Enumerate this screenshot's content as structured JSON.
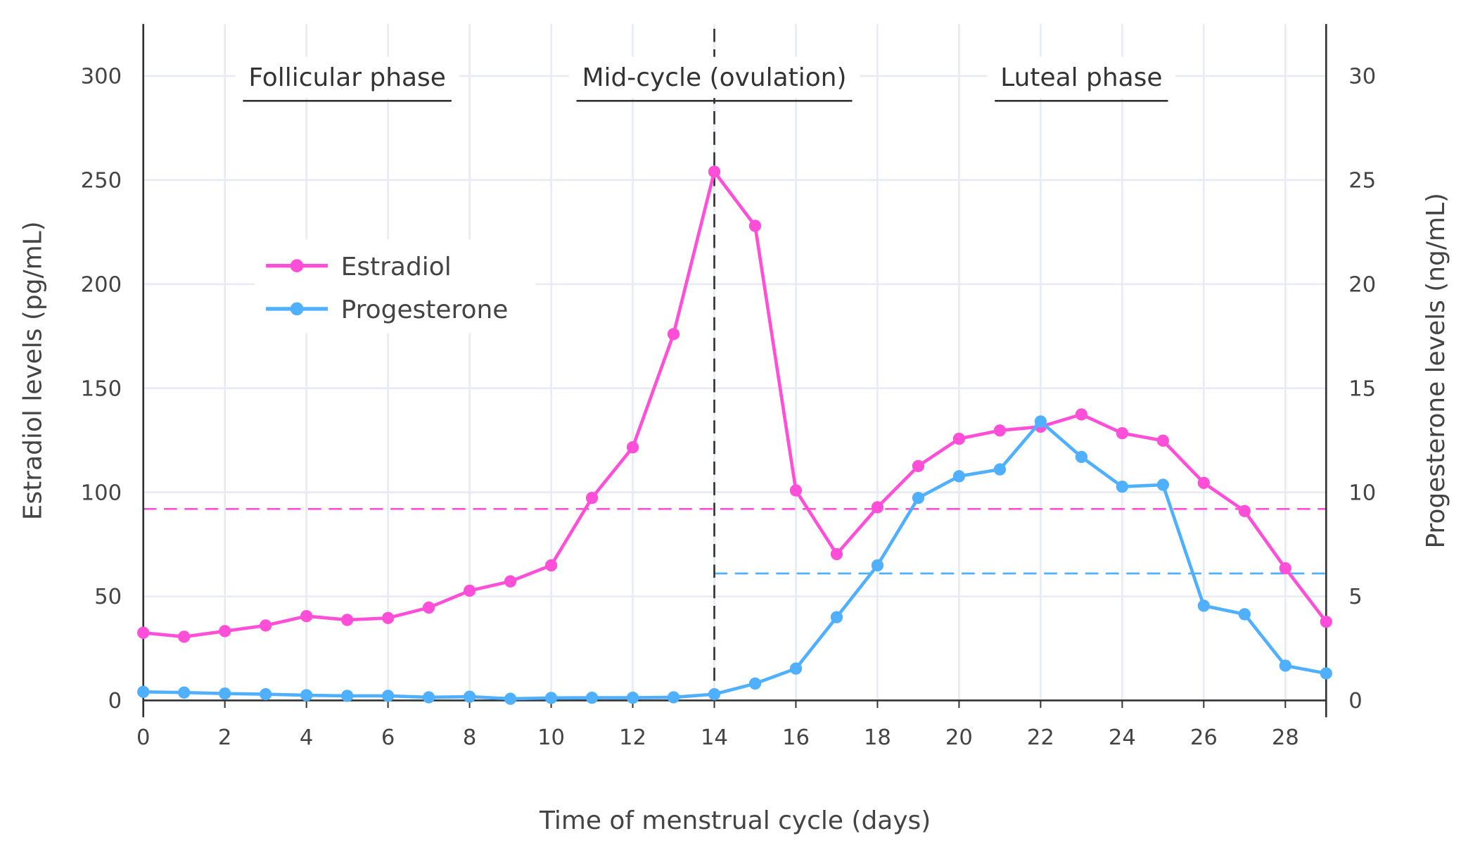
{
  "chart_data": {
    "type": "line",
    "xlabel": "Time of menstrual cycle (days)",
    "ylabel": "Estradiol levels (pg/mL)",
    "y2label": "Progesterone levels (ng/mL)",
    "xlim": [
      0,
      29
    ],
    "ylim": [
      0,
      320
    ],
    "y2lim": [
      0,
      32
    ],
    "xticks": [
      0,
      2,
      4,
      6,
      8,
      10,
      12,
      14,
      16,
      18,
      20,
      22,
      24,
      26,
      28
    ],
    "yticks": [
      0,
      50,
      100,
      150,
      200,
      250,
      300
    ],
    "y2ticks": [
      0,
      5,
      10,
      15,
      20,
      25,
      30
    ],
    "grid": true,
    "legend_position": "upper-left",
    "x": [
      0,
      1,
      2,
      3,
      4,
      5,
      6,
      7,
      8,
      9,
      10,
      11,
      12,
      13,
      14,
      15,
      16,
      17,
      18,
      19,
      20,
      21,
      22,
      23,
      24,
      25,
      26,
      27,
      28,
      29
    ],
    "series": [
      {
        "name": "Estradiol",
        "axis": "left",
        "color": "#ff4fd8",
        "values": [
          32.5,
          30.6,
          33.3,
          36,
          40.5,
          38.7,
          39.6,
          44.6,
          52.7,
          57.2,
          64.9,
          97.3,
          121.6,
          176,
          254,
          228,
          100.9,
          70.3,
          92.8,
          112.6,
          125.7,
          129.7,
          131.5,
          137.4,
          128.4,
          124.8,
          104.5,
          91,
          63.5,
          37.8
        ]
      },
      {
        "name": "Progesterone",
        "axis": "right",
        "color": "#4fb0ff",
        "values": [
          0.41,
          0.38,
          0.33,
          0.3,
          0.25,
          0.22,
          0.22,
          0.15,
          0.18,
          0.08,
          0.12,
          0.13,
          0.13,
          0.15,
          0.3,
          0.81,
          1.53,
          4.0,
          6.49,
          9.73,
          10.77,
          11.1,
          13.4,
          11.7,
          10.27,
          10.36,
          4.55,
          4.14,
          1.67,
          1.3
        ]
      }
    ],
    "reference_lines": [
      {
        "axis": "left",
        "value": 92,
        "color": "#ff4fd8",
        "x_from": 0,
        "x_to": 29
      },
      {
        "axis": "right",
        "value": 6.1,
        "color": "#4fb0ff",
        "x_from": 14,
        "x_to": 29
      },
      {
        "orientation": "vertical",
        "x": 14,
        "color": "#333333"
      }
    ],
    "annotations": [
      {
        "text": "Follicular phase",
        "x": 5
      },
      {
        "text": "Mid-cycle (ovulation)",
        "x": 14
      },
      {
        "text": "Luteal phase",
        "x": 23
      }
    ]
  }
}
